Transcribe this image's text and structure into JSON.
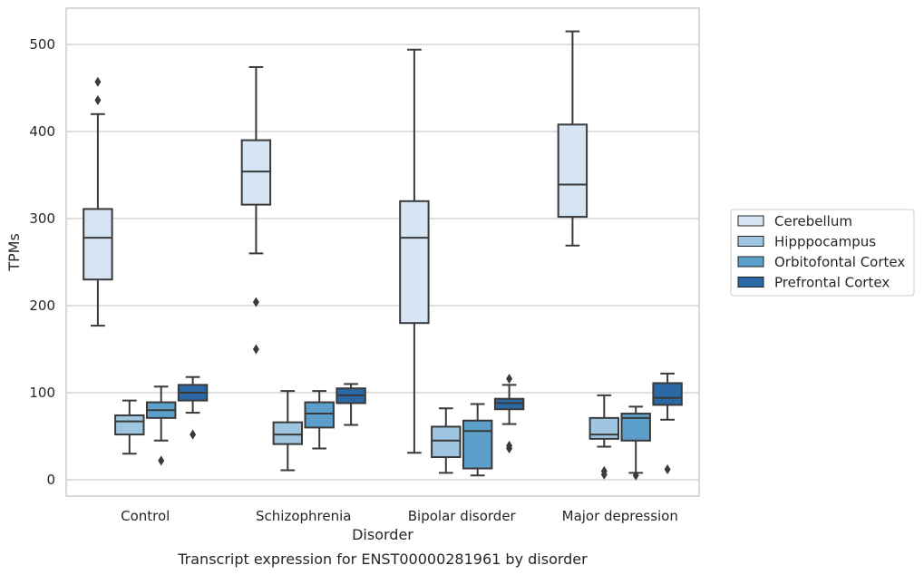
{
  "chart_data": {
    "type": "box",
    "xlabel": "Disorder",
    "ylabel": "TPMs",
    "caption": "Transcript expression for ENST00000281961 by disorder",
    "categories": [
      "Control",
      "Schizophrenia",
      "Bipolar disorder",
      "Major depression"
    ],
    "yticks": [
      0,
      100,
      200,
      300,
      400,
      500
    ],
    "ylim": [
      -20,
      541
    ],
    "grid": "horizontal",
    "legend_position": "right",
    "series": [
      {
        "name": "Cerebellum",
        "color": "#d6e5f4",
        "boxes": [
          {
            "whisker_low": 177,
            "q1": 230,
            "median": 278,
            "q3": 311,
            "whisker_high": 420,
            "outliers": [
              436,
              457
            ]
          },
          {
            "whisker_low": 260,
            "q1": 316,
            "median": 354,
            "q3": 390,
            "whisker_high": 474,
            "outliers": [
              150,
              204
            ]
          },
          {
            "whisker_low": 31,
            "q1": 180,
            "median": 278,
            "q3": 320,
            "whisker_high": 494,
            "outliers": []
          },
          {
            "whisker_low": 269,
            "q1": 302,
            "median": 339,
            "q3": 408,
            "whisker_high": 515,
            "outliers": []
          }
        ]
      },
      {
        "name": "Hipppocampus",
        "color": "#9fc6e0",
        "boxes": [
          {
            "whisker_low": 30,
            "q1": 52,
            "median": 67,
            "q3": 74,
            "whisker_high": 91,
            "outliers": []
          },
          {
            "whisker_low": 11,
            "q1": 41,
            "median": 52,
            "q3": 66,
            "whisker_high": 102,
            "outliers": []
          },
          {
            "whisker_low": 8,
            "q1": 26,
            "median": 45,
            "q3": 61,
            "whisker_high": 82,
            "outliers": []
          },
          {
            "whisker_low": 38,
            "q1": 47,
            "median": 52,
            "q3": 71,
            "whisker_high": 97,
            "outliers": [
              10,
              6
            ]
          }
        ]
      },
      {
        "name": "Orbitofontal Cortex",
        "color": "#5b9fca",
        "boxes": [
          {
            "whisker_low": 45,
            "q1": 71,
            "median": 80,
            "q3": 89,
            "whisker_high": 107,
            "outliers": [
              22
            ]
          },
          {
            "whisker_low": 36,
            "q1": 60,
            "median": 76,
            "q3": 89,
            "whisker_high": 102,
            "outliers": []
          },
          {
            "whisker_low": 5,
            "q1": 13,
            "median": 56,
            "q3": 68,
            "whisker_high": 87,
            "outliers": []
          },
          {
            "whisker_low": 8,
            "q1": 45,
            "median": 71,
            "q3": 76,
            "whisker_high": 84,
            "outliers": [
              5
            ]
          }
        ]
      },
      {
        "name": "Prefrontal Cortex",
        "color": "#2b69a6",
        "boxes": [
          {
            "whisker_low": 77,
            "q1": 91,
            "median": 100,
            "q3": 109,
            "whisker_high": 118,
            "outliers": [
              52
            ]
          },
          {
            "whisker_low": 63,
            "q1": 88,
            "median": 97,
            "q3": 105,
            "whisker_high": 110,
            "outliers": []
          },
          {
            "whisker_low": 64,
            "q1": 81,
            "median": 88,
            "q3": 93,
            "whisker_high": 109,
            "outliers": [
              116,
              36,
              39
            ]
          },
          {
            "whisker_low": 69,
            "q1": 86,
            "median": 94,
            "q3": 111,
            "whisker_high": 122,
            "outliers": [
              12
            ]
          }
        ]
      }
    ]
  }
}
